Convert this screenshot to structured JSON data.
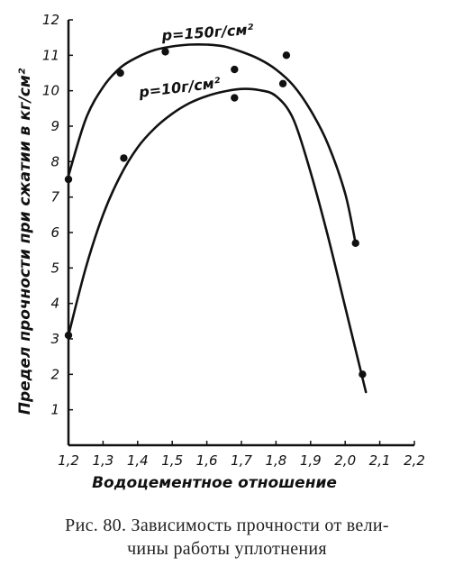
{
  "caption": {
    "line1": "Рис. 80. Зависимость прочности от вели-",
    "line2": "чины работы уплотнения"
  },
  "chart_data": {
    "type": "scatter",
    "title": "",
    "xlabel": "Водоцементное отношение",
    "ylabel": "Предел прочности при сжатии в кг/см²",
    "xlim": [
      1.2,
      2.2
    ],
    "ylim": [
      0,
      12
    ],
    "xticks": [
      "1,2",
      "1,3",
      "1,4",
      "1,5",
      "1,6",
      "1,7",
      "1,8",
      "1,9",
      "2,0",
      "2,1",
      "2,2"
    ],
    "yticks": [
      "1",
      "2",
      "3",
      "4",
      "5",
      "6",
      "7",
      "8",
      "9",
      "10",
      "11",
      "12"
    ],
    "grid": false,
    "series": [
      {
        "name": "p=150г/см²",
        "points": [
          [
            1.2,
            7.5
          ],
          [
            1.35,
            10.5
          ],
          [
            1.48,
            11.1
          ],
          [
            1.68,
            10.6
          ],
          [
            1.83,
            11.0
          ],
          [
            2.03,
            5.7
          ]
        ],
        "curve": [
          [
            1.2,
            7.6
          ],
          [
            1.25,
            9.2
          ],
          [
            1.3,
            10.1
          ],
          [
            1.35,
            10.65
          ],
          [
            1.4,
            10.95
          ],
          [
            1.45,
            11.15
          ],
          [
            1.5,
            11.25
          ],
          [
            1.55,
            11.3
          ],
          [
            1.6,
            11.3
          ],
          [
            1.65,
            11.25
          ],
          [
            1.7,
            11.1
          ],
          [
            1.75,
            10.9
          ],
          [
            1.8,
            10.6
          ],
          [
            1.85,
            10.15
          ],
          [
            1.9,
            9.45
          ],
          [
            1.95,
            8.5
          ],
          [
            2.0,
            7.1
          ],
          [
            2.03,
            5.7
          ]
        ]
      },
      {
        "name": "p=10г/см²",
        "points": [
          [
            1.2,
            3.1
          ],
          [
            1.36,
            8.1
          ],
          [
            1.68,
            9.8
          ],
          [
            1.82,
            10.2
          ],
          [
            2.05,
            2.0
          ]
        ],
        "curve": [
          [
            1.2,
            3.1
          ],
          [
            1.25,
            5.0
          ],
          [
            1.3,
            6.5
          ],
          [
            1.35,
            7.6
          ],
          [
            1.4,
            8.4
          ],
          [
            1.45,
            8.95
          ],
          [
            1.5,
            9.35
          ],
          [
            1.55,
            9.65
          ],
          [
            1.6,
            9.85
          ],
          [
            1.65,
            9.98
          ],
          [
            1.7,
            10.05
          ],
          [
            1.75,
            10.02
          ],
          [
            1.8,
            9.85
          ],
          [
            1.85,
            9.2
          ],
          [
            1.9,
            7.7
          ],
          [
            1.95,
            5.9
          ],
          [
            2.0,
            3.9
          ],
          [
            2.06,
            1.5
          ]
        ]
      }
    ]
  }
}
